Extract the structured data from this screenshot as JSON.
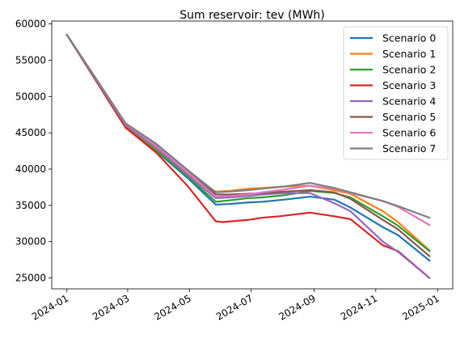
{
  "chart_data": {
    "type": "line",
    "title": "Sum reservoir: tev (MWh)",
    "xlabel": "",
    "ylabel": "",
    "x_axis_type": "date",
    "xlim": [
      "2023-12-17",
      "2025-01-16"
    ],
    "ylim": [
      23500,
      60400
    ],
    "x_ticks": [
      "2024-01",
      "2024-03",
      "2024-05",
      "2024-07",
      "2024-09",
      "2024-11",
      "2025-01"
    ],
    "x_tick_dates": [
      "2024-01-01",
      "2024-03-01",
      "2024-05-01",
      "2024-07-01",
      "2024-09-01",
      "2024-11-01",
      "2025-01-01"
    ],
    "y_ticks": [
      25000,
      30000,
      35000,
      40000,
      45000,
      50000,
      55000,
      60000
    ],
    "grid": false,
    "legend_position": "top-right",
    "series": [
      {
        "name": "Scenario 0",
        "color": "#1f77b4",
        "points": [
          [
            "2024-01-01",
            58500
          ],
          [
            "2024-02-28",
            45800
          ],
          [
            "2024-03-29",
            42500
          ],
          [
            "2024-04-29",
            38800
          ],
          [
            "2024-05-27",
            35100
          ],
          [
            "2024-06-10",
            35200
          ],
          [
            "2024-06-28",
            35400
          ],
          [
            "2024-07-12",
            35500
          ],
          [
            "2024-08-03",
            35800
          ],
          [
            "2024-08-28",
            36200
          ],
          [
            "2024-09-21",
            35800
          ],
          [
            "2024-10-07",
            34700
          ],
          [
            "2024-11-08",
            32000
          ],
          [
            "2024-11-23",
            30900
          ],
          [
            "2024-12-24",
            27400
          ]
        ]
      },
      {
        "name": "Scenario 1",
        "color": "#ff7f0e",
        "points": [
          [
            "2024-01-01",
            58500
          ],
          [
            "2024-02-28",
            45900
          ],
          [
            "2024-03-29",
            42900
          ],
          [
            "2024-04-29",
            39300
          ],
          [
            "2024-05-27",
            36900
          ],
          [
            "2024-06-10",
            37000
          ],
          [
            "2024-06-28",
            37300
          ],
          [
            "2024-07-12",
            37400
          ],
          [
            "2024-08-03",
            37600
          ],
          [
            "2024-08-28",
            37700
          ],
          [
            "2024-09-21",
            37100
          ],
          [
            "2024-10-07",
            36600
          ],
          [
            "2024-11-08",
            34200
          ],
          [
            "2024-11-23",
            32700
          ],
          [
            "2024-12-24",
            28800
          ]
        ]
      },
      {
        "name": "Scenario 2",
        "color": "#2ca02c",
        "points": [
          [
            "2024-01-01",
            58500
          ],
          [
            "2024-02-28",
            45700
          ],
          [
            "2024-03-29",
            42600
          ],
          [
            "2024-04-29",
            39000
          ],
          [
            "2024-05-27",
            35500
          ],
          [
            "2024-06-10",
            35700
          ],
          [
            "2024-06-28",
            36000
          ],
          [
            "2024-07-12",
            36100
          ],
          [
            "2024-08-03",
            36400
          ],
          [
            "2024-08-28",
            37000
          ],
          [
            "2024-09-21",
            36700
          ],
          [
            "2024-10-07",
            36100
          ],
          [
            "2024-11-08",
            33500
          ],
          [
            "2024-11-23",
            32200
          ],
          [
            "2024-12-24",
            28700
          ]
        ]
      },
      {
        "name": "Scenario 3",
        "color": "#d62728",
        "points": [
          [
            "2024-01-01",
            58500
          ],
          [
            "2024-02-28",
            45700
          ],
          [
            "2024-03-29",
            42300
          ],
          [
            "2024-04-29",
            37700
          ],
          [
            "2024-05-27",
            32800
          ],
          [
            "2024-06-03",
            32700
          ],
          [
            "2024-06-28",
            33000
          ],
          [
            "2024-07-12",
            33300
          ],
          [
            "2024-07-29",
            33500
          ],
          [
            "2024-08-28",
            34000
          ],
          [
            "2024-09-21",
            33500
          ],
          [
            "2024-10-07",
            33100
          ],
          [
            "2024-11-08",
            29500
          ],
          [
            "2024-11-23",
            28700
          ],
          [
            "2024-12-24",
            25000
          ]
        ]
      },
      {
        "name": "Scenario 4",
        "color": "#9467bd",
        "points": [
          [
            "2024-01-01",
            58500
          ],
          [
            "2024-02-28",
            46000
          ],
          [
            "2024-03-29",
            43000
          ],
          [
            "2024-04-29",
            39200
          ],
          [
            "2024-05-27",
            36000
          ],
          [
            "2024-06-10",
            36100
          ],
          [
            "2024-06-28",
            36300
          ],
          [
            "2024-07-12",
            36500
          ],
          [
            "2024-08-03",
            36700
          ],
          [
            "2024-08-28",
            36700
          ],
          [
            "2024-09-21",
            35300
          ],
          [
            "2024-10-07",
            34200
          ],
          [
            "2024-11-08",
            30000
          ],
          [
            "2024-11-23",
            28600
          ],
          [
            "2024-12-24",
            25000
          ]
        ]
      },
      {
        "name": "Scenario 5",
        "color": "#8c564b",
        "points": [
          [
            "2024-01-01",
            58500
          ],
          [
            "2024-02-28",
            46100
          ],
          [
            "2024-03-29",
            43300
          ],
          [
            "2024-04-29",
            39700
          ],
          [
            "2024-05-27",
            36500
          ],
          [
            "2024-06-10",
            36500
          ],
          [
            "2024-06-28",
            36600
          ],
          [
            "2024-07-12",
            36700
          ],
          [
            "2024-08-03",
            36900
          ],
          [
            "2024-08-28",
            37100
          ],
          [
            "2024-09-21",
            36800
          ],
          [
            "2024-10-07",
            35900
          ],
          [
            "2024-11-08",
            33000
          ],
          [
            "2024-11-23",
            31700
          ],
          [
            "2024-12-24",
            28000
          ]
        ]
      },
      {
        "name": "Scenario 6",
        "color": "#e377c2",
        "points": [
          [
            "2024-01-01",
            58500
          ],
          [
            "2024-02-28",
            46200
          ],
          [
            "2024-03-29",
            43200
          ],
          [
            "2024-04-29",
            39600
          ],
          [
            "2024-05-27",
            36200
          ],
          [
            "2024-06-10",
            36300
          ],
          [
            "2024-06-28",
            36500
          ],
          [
            "2024-07-12",
            36800
          ],
          [
            "2024-08-03",
            37200
          ],
          [
            "2024-08-28",
            37700
          ],
          [
            "2024-09-21",
            37300
          ],
          [
            "2024-10-07",
            36700
          ],
          [
            "2024-11-08",
            35600
          ],
          [
            "2024-11-23",
            34800
          ],
          [
            "2024-12-24",
            32300
          ]
        ]
      },
      {
        "name": "Scenario 7",
        "color": "#7f7f7f",
        "points": [
          [
            "2024-01-01",
            58500
          ],
          [
            "2024-02-28",
            46300
          ],
          [
            "2024-03-29",
            43500
          ],
          [
            "2024-04-29",
            39900
          ],
          [
            "2024-05-27",
            36800
          ],
          [
            "2024-06-10",
            36900
          ],
          [
            "2024-06-28",
            37100
          ],
          [
            "2024-07-12",
            37300
          ],
          [
            "2024-08-03",
            37600
          ],
          [
            "2024-08-28",
            38100
          ],
          [
            "2024-09-21",
            37400
          ],
          [
            "2024-10-07",
            36800
          ],
          [
            "2024-11-08",
            35600
          ],
          [
            "2024-11-23",
            34900
          ],
          [
            "2024-12-24",
            33300
          ]
        ]
      }
    ]
  }
}
